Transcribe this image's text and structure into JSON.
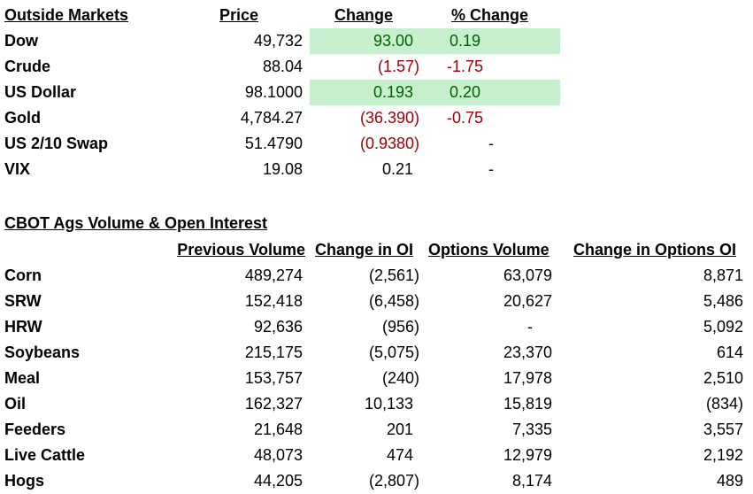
{
  "outside_markets": {
    "title": "Outside Markets",
    "headers": [
      "Price",
      "Change",
      "% Change"
    ],
    "highlight_color": "#c6efce",
    "rows": [
      {
        "name": "Dow",
        "price": "49,732",
        "change": "93.00",
        "pct_change": "0.19",
        "direction": "up"
      },
      {
        "name": "Crude",
        "price": "88.04",
        "change": "(1.57)",
        "pct_change": "-1.75",
        "direction": "down"
      },
      {
        "name": "US Dollar",
        "price": "98.1000",
        "change": "0.193",
        "pct_change": "0.20",
        "direction": "up"
      },
      {
        "name": "Gold",
        "price": "4,784.27",
        "change": "(36.390)",
        "pct_change": "-0.75",
        "direction": "down"
      },
      {
        "name": "US 2/10 Swap",
        "price": "51.4790",
        "change": "(0.9380)",
        "pct_change": "-",
        "direction": "down"
      },
      {
        "name": "VIX",
        "price": "19.08",
        "change": "0.21",
        "pct_change": "-",
        "direction": "flat"
      }
    ]
  },
  "cbot": {
    "title": "CBOT Ags Volume & Open Interest",
    "headers": [
      "Previous Volume",
      "Change in OI",
      "Options Volume",
      "Change in Options OI"
    ],
    "rows": [
      {
        "name": "Corn",
        "prev_volume": "489,274",
        "change_oi": "(2,561)",
        "options_volume": "63,079",
        "change_options_oi": "8,871"
      },
      {
        "name": "SRW",
        "prev_volume": "152,418",
        "change_oi": "(6,458)",
        "options_volume": "20,627",
        "change_options_oi": "5,486"
      },
      {
        "name": "HRW",
        "prev_volume": "92,636",
        "change_oi": "(956)",
        "options_volume": "-",
        "change_options_oi": "5,092"
      },
      {
        "name": "Soybeans",
        "prev_volume": "215,175",
        "change_oi": "(5,075)",
        "options_volume": "23,370",
        "change_options_oi": "614"
      },
      {
        "name": "Meal",
        "prev_volume": "153,757",
        "change_oi": "(240)",
        "options_volume": "17,978",
        "change_options_oi": "2,510"
      },
      {
        "name": "Oil",
        "prev_volume": "162,327",
        "change_oi": "10,133",
        "options_volume": "15,819",
        "change_options_oi": "(834)"
      },
      {
        "name": "Feeders",
        "prev_volume": "21,648",
        "change_oi": "201",
        "options_volume": "7,335",
        "change_options_oi": "3,557"
      },
      {
        "name": "Live Cattle",
        "prev_volume": "48,073",
        "change_oi": "474",
        "options_volume": "12,979",
        "change_options_oi": "2,192"
      },
      {
        "name": "Hogs",
        "prev_volume": "44,205",
        "change_oi": "(2,807)",
        "options_volume": "8,174",
        "change_options_oi": "489"
      }
    ]
  }
}
